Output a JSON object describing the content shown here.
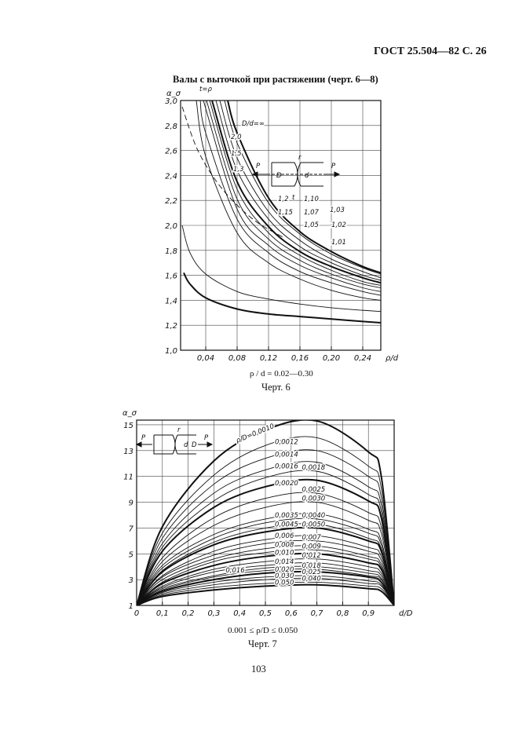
{
  "header": {
    "doc_code": "ГОСТ 25.504—82 С. 26"
  },
  "section_title": "Валы с выточкой при растяжении (черт. 6—8)",
  "figure6": {
    "range_caption": "ρ / d = 0.02—0.30",
    "caption": "Черт. 6",
    "load_label": "P",
    "groove_label": "r",
    "D_label": "D",
    "d_label": "d",
    "t_label": "t"
  },
  "figure7": {
    "range_caption": "0.001 ≤ ρ/D ≤ 0.050",
    "caption": "Черт. 7",
    "load_label": "P",
    "groove_label": "r",
    "D_label": "D",
    "d_label": "d"
  },
  "page_number": "103",
  "chart_data": [
    {
      "type": "line",
      "title": "",
      "ylabel": "α_σ",
      "xlabel": "ρ/d",
      "xlim": [
        0.008,
        0.263
      ],
      "ylim": [
        1.0,
        3.0
      ],
      "x_ticks": [
        "0,04",
        "0,08",
        "0,12",
        "0,16",
        "0,20",
        "0,24"
      ],
      "x_tick_values": [
        0.04,
        0.08,
        0.12,
        0.16,
        0.2,
        0.24
      ],
      "y_ticks": [
        "1,0",
        "1,2",
        "1,4",
        "1,6",
        "1,8",
        "2,0",
        "2,2",
        "2,4",
        "2,6",
        "2,8",
        "3,0"
      ],
      "y_tick_values": [
        1.0,
        1.2,
        1.4,
        1.6,
        1.8,
        2.0,
        2.2,
        2.4,
        2.6,
        2.8,
        3.0
      ],
      "grid": true,
      "series": [
        {
          "name": "D/d=∞",
          "points": [
            [
              0.068,
              3.0
            ],
            [
              0.08,
              2.74
            ],
            [
              0.12,
              2.22
            ],
            [
              0.16,
              1.95
            ],
            [
              0.2,
              1.79
            ],
            [
              0.24,
              1.67
            ],
            [
              0.263,
              1.62
            ]
          ]
        },
        {
          "name": "2,0",
          "points": [
            [
              0.064,
              3.0
            ],
            [
              0.08,
              2.66
            ],
            [
              0.12,
              2.18
            ],
            [
              0.16,
              1.93
            ],
            [
              0.2,
              1.77
            ],
            [
              0.24,
              1.66
            ],
            [
              0.263,
              1.61
            ]
          ]
        },
        {
          "name": "1,5",
          "points": [
            [
              0.058,
              3.0
            ],
            [
              0.08,
              2.54
            ],
            [
              0.12,
              2.11
            ],
            [
              0.16,
              1.88
            ],
            [
              0.2,
              1.73
            ],
            [
              0.24,
              1.63
            ],
            [
              0.263,
              1.58
            ]
          ]
        },
        {
          "name": "1,3",
          "points": [
            [
              0.053,
              3.0
            ],
            [
              0.08,
              2.44
            ],
            [
              0.12,
              2.05
            ],
            [
              0.16,
              1.83
            ],
            [
              0.2,
              1.7
            ],
            [
              0.24,
              1.6
            ],
            [
              0.263,
              1.56
            ]
          ]
        },
        {
          "name": "1,2",
          "points": [
            [
              0.048,
              3.0
            ],
            [
              0.08,
              2.35
            ],
            [
              0.12,
              1.99
            ],
            [
              0.16,
              1.79
            ],
            [
              0.2,
              1.67
            ],
            [
              0.24,
              1.58
            ],
            [
              0.263,
              1.54
            ]
          ]
        },
        {
          "name": "1,15",
          "points": [
            [
              0.045,
              3.0
            ],
            [
              0.08,
              2.29
            ],
            [
              0.12,
              1.94
            ],
            [
              0.16,
              1.76
            ],
            [
              0.2,
              1.64
            ],
            [
              0.24,
              1.55
            ],
            [
              0.263,
              1.52
            ]
          ]
        },
        {
          "name": "1,10",
          "points": [
            [
              0.041,
              3.0
            ],
            [
              0.08,
              2.21
            ],
            [
              0.12,
              1.89
            ],
            [
              0.16,
              1.72
            ],
            [
              0.2,
              1.61
            ],
            [
              0.24,
              1.53
            ],
            [
              0.263,
              1.5
            ]
          ]
        },
        {
          "name": "1,07",
          "points": [
            [
              0.037,
              3.0
            ],
            [
              0.08,
              2.13
            ],
            [
              0.12,
              1.84
            ],
            [
              0.16,
              1.68
            ],
            [
              0.2,
              1.58
            ],
            [
              0.24,
              1.5
            ],
            [
              0.263,
              1.47
            ]
          ]
        },
        {
          "name": "1,05",
          "points": [
            [
              0.033,
              3.0
            ],
            [
              0.04,
              2.74
            ],
            [
              0.08,
              2.05
            ],
            [
              0.12,
              1.78
            ],
            [
              0.16,
              1.63
            ],
            [
              0.2,
              1.54
            ],
            [
              0.24,
              1.47
            ],
            [
              0.263,
              1.44
            ]
          ]
        },
        {
          "name": "1,03",
          "points": [
            [
              0.028,
              3.0
            ],
            [
              0.04,
              2.55
            ],
            [
              0.08,
              1.94
            ],
            [
              0.12,
              1.7
            ],
            [
              0.16,
              1.57
            ],
            [
              0.2,
              1.48
            ],
            [
              0.24,
              1.42
            ],
            [
              0.263,
              1.4
            ]
          ]
        },
        {
          "name": "1,02",
          "points": [
            [
              0.01,
              2.0
            ],
            [
              0.02,
              1.78
            ],
            [
              0.04,
              1.61
            ],
            [
              0.08,
              1.47
            ],
            [
              0.12,
              1.41
            ],
            [
              0.16,
              1.37
            ],
            [
              0.2,
              1.34
            ],
            [
              0.24,
              1.32
            ],
            [
              0.263,
              1.31
            ]
          ]
        },
        {
          "name": "1,01",
          "points": [
            [
              0.012,
              1.62
            ],
            [
              0.02,
              1.53
            ],
            [
              0.04,
              1.42
            ],
            [
              0.08,
              1.33
            ],
            [
              0.12,
              1.29
            ],
            [
              0.16,
              1.27
            ],
            [
              0.2,
              1.25
            ],
            [
              0.24,
              1.23
            ],
            [
              0.263,
              1.22
            ]
          ]
        },
        {
          "name": "t=ρ",
          "dashed": true,
          "points": [
            [
              0.01,
              2.95
            ],
            [
              0.03,
              2.6
            ],
            [
              0.06,
              2.3
            ],
            [
              0.1,
              2.05
            ],
            [
              0.14,
              1.9
            ]
          ]
        }
      ]
    },
    {
      "type": "line",
      "title": "",
      "ylabel": "α_σ",
      "xlabel": "d/D",
      "xlim": [
        0,
        1.0
      ],
      "ylim": [
        1,
        15
      ],
      "x_ticks": [
        "0",
        "0,1",
        "0,2",
        "0,3",
        "0,4",
        "0,5",
        "0,6",
        "0,7",
        "0,8",
        "0,9"
      ],
      "x_tick_values": [
        0,
        0.1,
        0.2,
        0.3,
        0.4,
        0.5,
        0.6,
        0.7,
        0.8,
        0.9
      ],
      "y_ticks": [
        "1",
        "3",
        "5",
        "7",
        "9",
        "11",
        "13",
        "15"
      ],
      "y_tick_values": [
        1,
        3,
        5,
        7,
        9,
        11,
        13,
        15
      ],
      "grid": true,
      "x": [
        0,
        0.1,
        0.3,
        0.5,
        0.7,
        0.9,
        0.95,
        1.0
      ],
      "series": [
        {
          "name": "ρ/D=0,0010",
          "values": [
            1,
            7.1,
            12.2,
            14.6,
            15.3,
            12.9,
            11.0,
            1
          ]
        },
        {
          "name": "0,0012",
          "values": [
            1,
            6.6,
            11.1,
            13.4,
            14.0,
            11.8,
            10.1,
            1
          ]
        },
        {
          "name": "0,0014",
          "values": [
            1,
            6.2,
            10.4,
            12.4,
            13.0,
            11.0,
            9.4,
            1
          ]
        },
        {
          "name": "0,0016",
          "values": [
            1,
            5.8,
            9.7,
            11.5,
            12.1,
            10.2,
            8.8,
            1
          ]
        },
        {
          "name": "0,0018",
          "values": [
            1,
            5.5,
            9.1,
            10.9,
            11.4,
            9.6,
            8.3,
            1
          ]
        },
        {
          "name": "0,0020",
          "values": [
            1,
            5.2,
            8.6,
            10.2,
            10.7,
            9.1,
            7.8,
            1
          ]
        },
        {
          "name": "0,0025",
          "values": [
            1,
            4.7,
            7.8,
            9.3,
            9.7,
            8.2,
            7.1,
            1
          ]
        },
        {
          "name": "0,0030",
          "values": [
            1,
            4.4,
            7.2,
            8.6,
            9.0,
            7.6,
            6.6,
            1
          ]
        },
        {
          "name": "0,0035",
          "values": [
            1,
            4.1,
            6.5,
            7.7,
            8.1,
            6.9,
            6.0,
            1
          ]
        },
        {
          "name": "0,0040",
          "values": [
            1,
            3.9,
            6.2,
            7.4,
            7.7,
            6.6,
            5.7,
            1
          ]
        },
        {
          "name": "0,0045",
          "values": [
            1,
            3.7,
            5.9,
            7.0,
            7.3,
            6.2,
            5.4,
            1
          ]
        },
        {
          "name": "0,0050",
          "values": [
            1,
            3.6,
            5.7,
            6.7,
            7.0,
            6.0,
            5.2,
            1
          ]
        },
        {
          "name": "0,006",
          "values": [
            1,
            3.3,
            5.2,
            6.1,
            6.4,
            5.5,
            4.8,
            1
          ]
        },
        {
          "name": "0,007",
          "values": [
            1,
            3.2,
            4.9,
            5.8,
            6.0,
            5.2,
            4.5,
            1
          ]
        },
        {
          "name": "0,008",
          "values": [
            1,
            3.0,
            4.6,
            5.4,
            5.6,
            4.8,
            4.2,
            1
          ]
        },
        {
          "name": "0,009",
          "values": [
            1,
            2.8,
            4.4,
            5.1,
            5.3,
            4.6,
            4.0,
            1
          ]
        },
        {
          "name": "0,010",
          "values": [
            1,
            2.7,
            4.1,
            4.8,
            5.0,
            4.3,
            3.8,
            1
          ]
        },
        {
          "name": "0,012",
          "values": [
            1,
            2.5,
            3.8,
            4.4,
            4.6,
            4.0,
            3.5,
            1
          ]
        },
        {
          "name": "0,014",
          "values": [
            1,
            2.4,
            3.6,
            4.1,
            4.3,
            3.7,
            3.3,
            1
          ]
        },
        {
          "name": "0,016",
          "values": [
            1,
            2.3,
            3.3,
            3.9,
            4.0,
            3.5,
            3.1,
            1
          ]
        },
        {
          "name": "0,018",
          "values": [
            1,
            2.2,
            3.2,
            3.7,
            3.8,
            3.3,
            3.0,
            1
          ]
        },
        {
          "name": "0,020",
          "values": [
            1,
            2.1,
            3.0,
            3.5,
            3.6,
            3.2,
            2.8,
            1
          ]
        },
        {
          "name": "0,025",
          "values": [
            1,
            2.0,
            2.8,
            3.2,
            3.3,
            2.9,
            2.6,
            1
          ]
        },
        {
          "name": "0,030",
          "values": [
            1,
            1.9,
            2.6,
            3.0,
            3.1,
            2.7,
            2.5,
            1
          ]
        },
        {
          "name": "0,040",
          "values": [
            1,
            1.8,
            2.4,
            2.7,
            2.8,
            2.5,
            2.3,
            1
          ]
        },
        {
          "name": "0,050",
          "values": [
            1,
            1.7,
            2.2,
            2.5,
            2.6,
            2.3,
            2.1,
            1
          ]
        }
      ]
    }
  ]
}
